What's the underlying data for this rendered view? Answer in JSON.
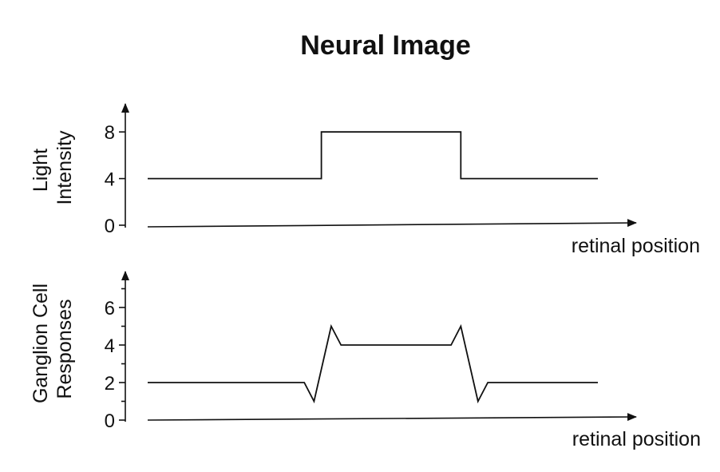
{
  "title": "Neural Image",
  "chart_data": [
    {
      "type": "line",
      "ylabel_lines": [
        "Light",
        "Intensity"
      ],
      "xlabel": "retinal position",
      "ylim": [
        0,
        10
      ],
      "yticks": [
        0,
        4,
        8
      ],
      "minor_yticks": [],
      "xlim": [
        0,
        10
      ],
      "series": [
        {
          "x": [
            0,
            3.55,
            3.55,
            6.4,
            6.4,
            9.2
          ],
          "y": [
            4,
            4,
            8,
            8,
            4,
            4
          ]
        }
      ]
    },
    {
      "type": "line",
      "ylabel_lines": [
        "Ganglion Cell",
        "Responses"
      ],
      "xlabel": "retinal position",
      "ylim": [
        0,
        7.4
      ],
      "yticks": [
        0,
        2,
        4,
        6
      ],
      "minor_yticks": [
        1,
        3,
        5,
        7
      ],
      "xlim": [
        0,
        10
      ],
      "series": [
        {
          "x": [
            0,
            3.2,
            3.4,
            3.75,
            3.95,
            6.2,
            6.4,
            6.75,
            6.95,
            9.2
          ],
          "y": [
            2,
            2,
            1,
            5,
            4,
            4,
            5,
            1,
            2,
            2
          ]
        }
      ]
    }
  ]
}
